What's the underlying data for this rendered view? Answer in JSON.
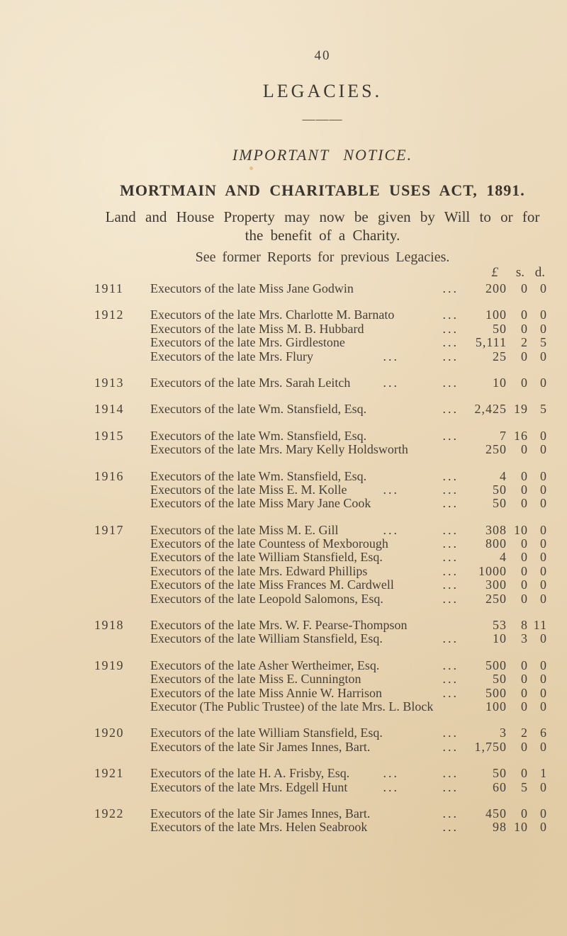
{
  "page": {
    "page_number": "40",
    "title": "LEGACIES.",
    "divider": "———",
    "notice_heading": "IMPORTANT NOTICE.",
    "act_heading": "MORTMAIN AND CHARITABLE USES ACT, 1891.",
    "act_body_line1": "Land and House Property may now be given by Will to or for",
    "act_body_line2": "the benefit of a Charity.",
    "see_former": "See former Reports for previous Legacies.",
    "currency_header": {
      "pounds": "£",
      "shillings": "s.",
      "pence": "d."
    }
  },
  "ledger": {
    "dots_glyph": "...",
    "groups": [
      {
        "year": "1911",
        "entries": [
          {
            "name": "Executors of the late Miss Jane Godwin",
            "dots": 1,
            "pounds": "200",
            "s": "0",
            "d": "0"
          }
        ]
      },
      {
        "year": "1912",
        "entries": [
          {
            "name": "Executors of the late Mrs. Charlotte M. Barnato",
            "dots": 1,
            "pounds": "100",
            "s": "0",
            "d": "0"
          },
          {
            "name": "Executors of the late Miss M. B. Hubbard",
            "dots": 1,
            "pounds": "50",
            "s": "0",
            "d": "0"
          },
          {
            "name": "Executors of the late Mrs. Girdlestone",
            "dots": 1,
            "pounds": "5,111",
            "s": "2",
            "d": "5"
          },
          {
            "name": "Executors of the late Mrs. Flury",
            "dots": 2,
            "pounds": "25",
            "s": "0",
            "d": "0"
          }
        ]
      },
      {
        "year": "1913",
        "entries": [
          {
            "name": "Executors of the late Mrs. Sarah Leitch",
            "dots": 2,
            "pounds": "10",
            "s": "0",
            "d": "0"
          }
        ]
      },
      {
        "year": "1914",
        "entries": [
          {
            "name": "Executors of the late Wm. Stansfield, Esq.",
            "dots": 1,
            "pounds": "2,425",
            "s": "19",
            "d": "5"
          }
        ]
      },
      {
        "year": "1915",
        "entries": [
          {
            "name": "Executors of the late Wm. Stansfield, Esq.",
            "dots": 1,
            "pounds": "7",
            "s": "16",
            "d": "0"
          },
          {
            "name": "Executors of the late Mrs. Mary Kelly Holdsworth",
            "dots": 0,
            "pounds": "250",
            "s": "0",
            "d": "0"
          }
        ]
      },
      {
        "year": "1916",
        "entries": [
          {
            "name": "Executors of the late Wm. Stansfield, Esq.",
            "dots": 1,
            "pounds": "4",
            "s": "0",
            "d": "0"
          },
          {
            "name": "Executors of the late Miss E. M. Kolle",
            "dots": 2,
            "pounds": "50",
            "s": "0",
            "d": "0"
          },
          {
            "name": "Executors of the late Miss Mary Jane Cook",
            "dots": 1,
            "pounds": "50",
            "s": "0",
            "d": "0"
          }
        ]
      },
      {
        "year": "1917",
        "entries": [
          {
            "name": "Executors of the late Miss M. E. Gill",
            "dots": 2,
            "pounds": "308",
            "s": "10",
            "d": "0"
          },
          {
            "name": "Executors of the late Countess of Mexborough",
            "dots": 1,
            "pounds": "800",
            "s": "0",
            "d": "0"
          },
          {
            "name": "Executors of the late William Stansfield, Esq.",
            "dots": 1,
            "pounds": "4",
            "s": "0",
            "d": "0"
          },
          {
            "name": "Executors of the late Mrs. Edward Phillips",
            "dots": 1,
            "pounds": "1000",
            "s": "0",
            "d": "0"
          },
          {
            "name": "Executors of the late Miss Frances M. Cardwell",
            "dots": 1,
            "pounds": "300",
            "s": "0",
            "d": "0"
          },
          {
            "name": "Executors of the late Leopold Salomons, Esq.",
            "dots": 1,
            "pounds": "250",
            "s": "0",
            "d": "0"
          }
        ]
      },
      {
        "year": "1918",
        "entries": [
          {
            "name": "Executors of the late Mrs. W. F. Pearse-Thompson",
            "dots": 0,
            "pounds": "53",
            "s": "8",
            "d": "11"
          },
          {
            "name": "Executors of the late William Stansfield, Esq.",
            "dots": 1,
            "pounds": "10",
            "s": "3",
            "d": "0"
          }
        ]
      },
      {
        "year": "1919",
        "entries": [
          {
            "name": "Executors of the late Asher Wertheimer, Esq.",
            "dots": 1,
            "pounds": "500",
            "s": "0",
            "d": "0"
          },
          {
            "name": "Executors of the late Miss E. Cunnington",
            "dots": 1,
            "pounds": "50",
            "s": "0",
            "d": "0"
          },
          {
            "name": "Executors of the late Miss Annie W. Harrison",
            "dots": 1,
            "pounds": "500",
            "s": "0",
            "d": "0"
          },
          {
            "name": "Executor (The Public Trustee) of the late Mrs. L. Block",
            "dots": 0,
            "pounds": "100",
            "s": "0",
            "d": "0"
          }
        ]
      },
      {
        "year": "1920",
        "entries": [
          {
            "name": "Executors of the late William Stansfield, Esq.",
            "dots": 1,
            "pounds": "3",
            "s": "2",
            "d": "6"
          },
          {
            "name": "Executors of the late Sir James Innes, Bart.",
            "dots": 1,
            "pounds": "1,750",
            "s": "0",
            "d": "0"
          }
        ]
      },
      {
        "year": "1921",
        "entries": [
          {
            "name": "Executors of the late H. A. Frisby, Esq.",
            "dots": 2,
            "pounds": "50",
            "s": "0",
            "d": "1"
          },
          {
            "name": "Executors of the late Mrs. Edgell Hunt",
            "dots": 2,
            "pounds": "60",
            "s": "5",
            "d": "0"
          }
        ]
      },
      {
        "year": "1922",
        "entries": [
          {
            "name": "Executors of the late Sir James Innes, Bart.",
            "dots": 1,
            "pounds": "450",
            "s": "0",
            "d": "0"
          },
          {
            "name": "Executors of the late Mrs. Helen Seabrook",
            "dots": 1,
            "pounds": "98",
            "s": "10",
            "d": "0"
          }
        ]
      }
    ]
  },
  "colors": {
    "paper": "#ebd9ba",
    "ink": "#453f37"
  }
}
